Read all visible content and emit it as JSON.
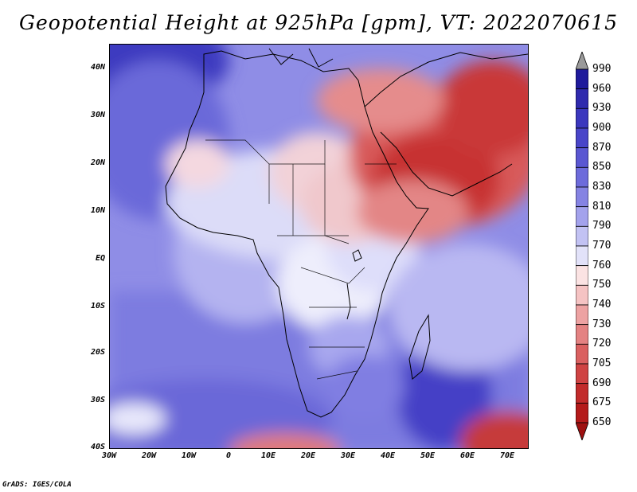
{
  "title": "Geopotential Height at 925hPa [gpm], VT: 2022070615",
  "lat_labels": [
    "40N",
    "30N",
    "20N",
    "10N",
    "EQ",
    "10S",
    "20S",
    "30S",
    "40S"
  ],
  "lon_labels": [
    "30W",
    "20W",
    "10W",
    "0",
    "10E",
    "20E",
    "30E",
    "40E",
    "50E",
    "60E",
    "70E"
  ],
  "colorbar": {
    "labels": [
      "990",
      "960",
      "930",
      "900",
      "870",
      "850",
      "830",
      "810",
      "790",
      "770",
      "760",
      "750",
      "740",
      "730",
      "720",
      "705",
      "690",
      "675",
      "650"
    ],
    "colors": [
      "#9a9a9a",
      "#1f1a9c",
      "#2f2aae",
      "#3b37be",
      "#4945c9",
      "#5a57d2",
      "#6d6bdb",
      "#8583e3",
      "#a3a2ec",
      "#c2c2f3",
      "#e2e2f9",
      "#fbe3e3",
      "#f5c3c3",
      "#eda2a2",
      "#e48282",
      "#da6060",
      "#cf4343",
      "#c22b2b",
      "#b41a1a",
      "#9e1010"
    ]
  },
  "map": {
    "region": "Africa and Middle East",
    "projection": "latlon",
    "lon_range": [
      -30,
      75
    ],
    "lat_range": [
      -40,
      45
    ]
  },
  "credit": "GrADS: IGES/COLA"
}
